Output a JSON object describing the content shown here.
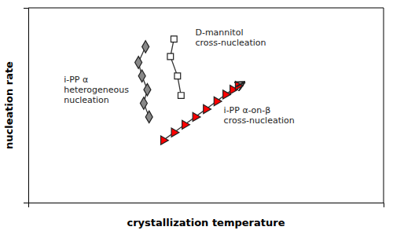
{
  "chart_data": {
    "type": "scatter",
    "xlabel": "crystallization temperature",
    "ylabel": "nucleation rate",
    "xlim": [
      0,
      10
    ],
    "ylim": [
      0,
      10
    ],
    "xticks": [],
    "yticks": [],
    "tick_labels": false,
    "grid": false,
    "series": [
      {
        "x": [
          3.3,
          3.1,
          3.2,
          3.35,
          3.25,
          3.4
        ],
        "values": [
          8.0,
          7.2,
          6.5,
          5.8,
          5.1,
          4.4
        ],
        "color": "#888888",
        "marker": "diamond",
        "line_style": "solid"
      },
      {
        "x": [
          4.1,
          4.0,
          4.2,
          4.3
        ],
        "values": [
          8.4,
          7.5,
          6.5,
          5.5
        ],
        "color": "#ffffff",
        "marker": "square",
        "line_style": "solid"
      },
      {
        "x": [
          3.8,
          4.1,
          4.4,
          4.7,
          5.0,
          5.3,
          5.55,
          5.75,
          5.9
        ],
        "values": [
          3.2,
          3.6,
          4.0,
          4.4,
          4.8,
          5.2,
          5.55,
          5.8,
          6.0
        ],
        "color": "#ff0000",
        "marker": "triangle-right",
        "line_style": "solid"
      }
    ],
    "arrows": [
      {
        "x": [
          5.85,
          6.08
        ],
        "y": [
          5.95,
          6.18
        ]
      }
    ],
    "annotations": [
      {
        "text": "i-PP α\nheterogeneous\nnucleation",
        "x": 1.0,
        "y": 5.8
      },
      {
        "text": "D-mannitol\ncross-nucleation",
        "x": 4.7,
        "y": 8.5
      },
      {
        "text": "i-PP α-on-β\ncross-nucleation",
        "x": 5.5,
        "y": 4.5
      }
    ]
  }
}
